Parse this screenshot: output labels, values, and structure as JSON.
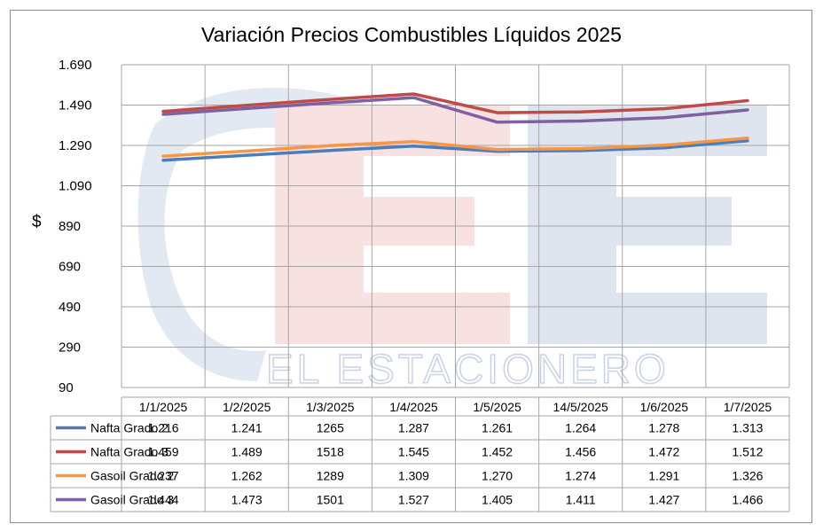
{
  "watermark": {
    "text": "EL ESTACIONERO",
    "colors": {
      "blue": "#dce3ee",
      "red": "#f6dcdc"
    }
  },
  "colors": {
    "grid": "#a6a6a6",
    "border": "#8c8c8c"
  },
  "chart_data": {
    "type": "line",
    "title": "Variación Precios Combustibles Líquidos 2025",
    "ylabel": "$",
    "xlabel": "",
    "ylim": [
      90,
      1690
    ],
    "yticks": [
      "1.690",
      "1.490",
      "1.290",
      "1.090",
      "890",
      "690",
      "490",
      "290",
      "90"
    ],
    "ytick_values": [
      1690,
      1490,
      1290,
      1090,
      890,
      690,
      490,
      290,
      90
    ],
    "grid": true,
    "legend": "data-table",
    "categories": [
      "1/1/2025",
      "1/2/2025",
      "1/3/2025",
      "1/4/2025",
      "1/5/2025",
      "14/5/2025",
      "1/6/2025",
      "1/7/2025"
    ],
    "series": [
      {
        "name": "Nafta Grado 2",
        "color": "#4a7ebb",
        "values": [
          1216,
          1241,
          1265,
          1287,
          1261,
          1264,
          1278,
          1313
        ],
        "labels": [
          "1.216",
          "1.241",
          "1265",
          "1.287",
          "1.261",
          "1.264",
          "1.278",
          "1.313"
        ]
      },
      {
        "name": "Nafta Grado 3",
        "color": "#be4b48",
        "values": [
          1459,
          1489,
          1518,
          1545,
          1452,
          1456,
          1472,
          1512
        ],
        "labels": [
          "1.459",
          "1.489",
          "1518",
          "1.545",
          "1.452",
          "1.456",
          "1.472",
          "1.512"
        ]
      },
      {
        "name": "Gasoil Grado 2",
        "color": "#f79646",
        "values": [
          1237,
          1262,
          1289,
          1309,
          1270,
          1274,
          1291,
          1326
        ],
        "labels": [
          "1.237",
          "1.262",
          "1289",
          "1.309",
          "1.270",
          "1.274",
          "1.291",
          "1.326"
        ]
      },
      {
        "name": "Gasoil Grado 3",
        "color": "#7f60a0",
        "values": [
          1444,
          1473,
          1501,
          1527,
          1405,
          1411,
          1427,
          1466
        ],
        "labels": [
          "1.444",
          "1.473",
          "1501",
          "1.527",
          "1.405",
          "1.411",
          "1.427",
          "1.466"
        ]
      }
    ]
  }
}
